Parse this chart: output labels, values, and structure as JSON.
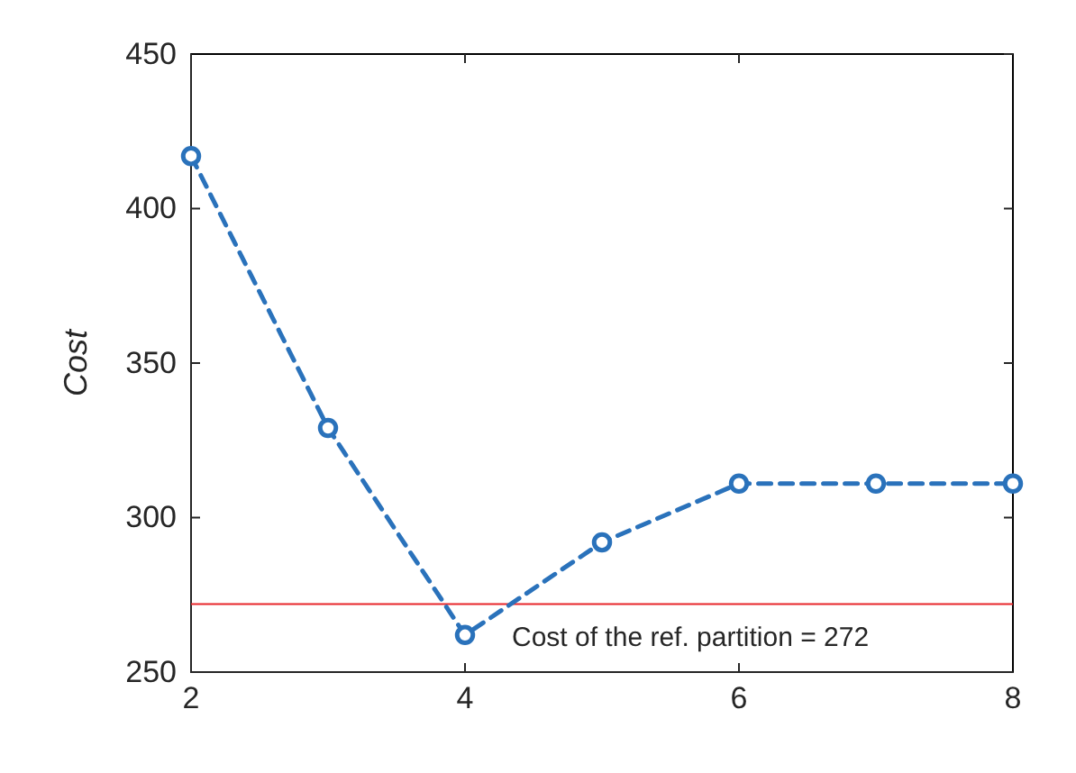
{
  "chart_data": {
    "type": "line",
    "ylabel": "Cost",
    "x": [
      2,
      3,
      4,
      5,
      6,
      7,
      8
    ],
    "series": [
      {
        "color": "#2a72bb",
        "values": [
          417,
          329,
          262,
          292,
          311,
          311,
          311
        ]
      }
    ],
    "xlim": [
      2,
      8
    ],
    "xticks": [
      2,
      4,
      6,
      8
    ],
    "ylim": [
      250,
      450
    ],
    "yticks": [
      250,
      300,
      350,
      400,
      450
    ],
    "ref_lines": [
      {
        "axis": "y",
        "value": 272,
        "label": "Cost of the ref. partition = 272",
        "color": "#e8262a"
      }
    ],
    "marker": "circle",
    "line_style": "dashed",
    "grid": false
  }
}
